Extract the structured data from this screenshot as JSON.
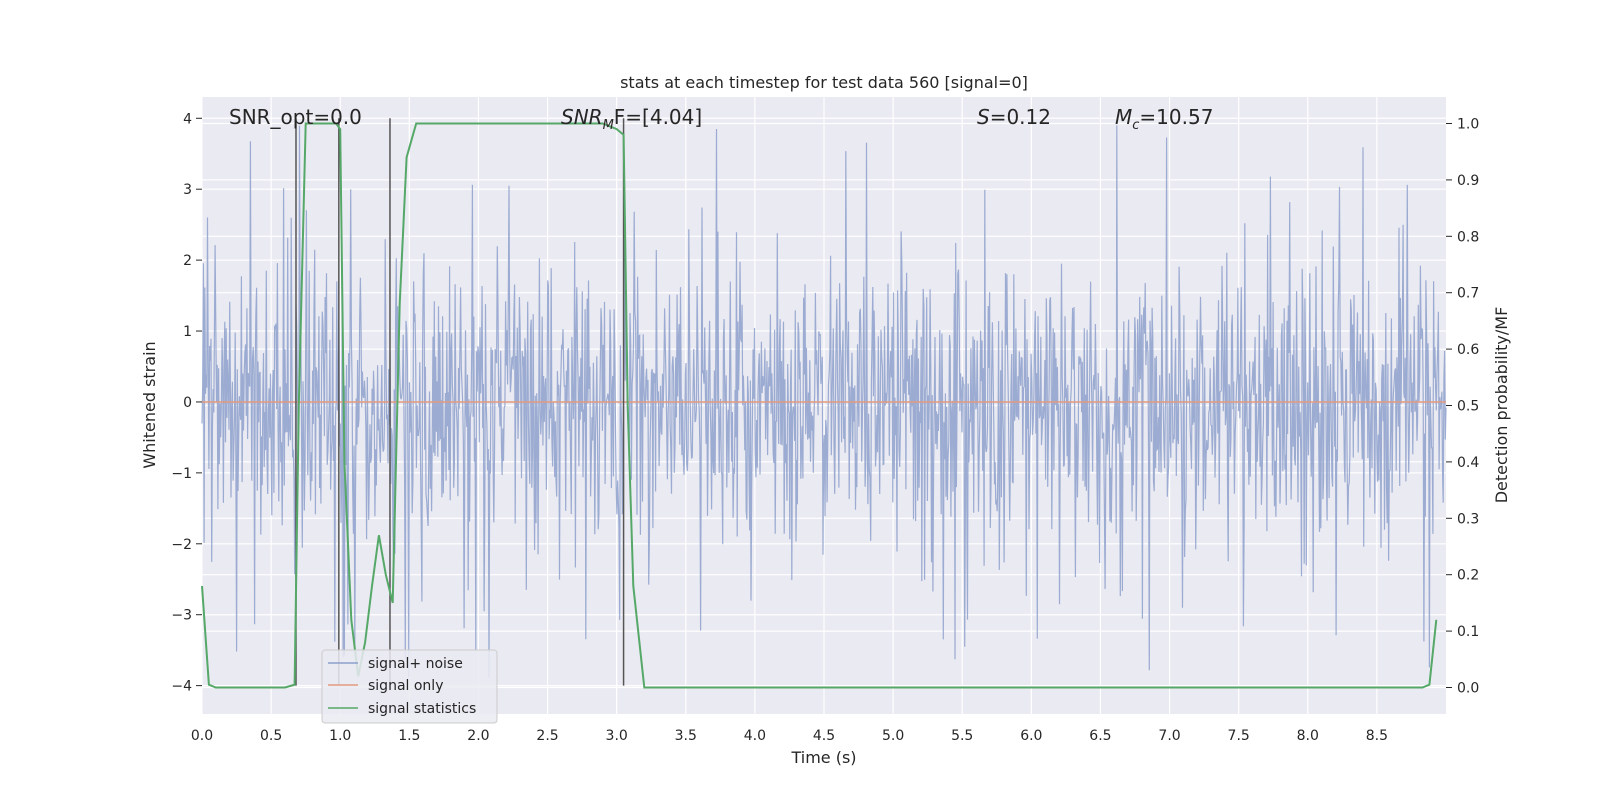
{
  "chart_data": {
    "type": "line",
    "title": "stats at each timestep for test data 560 [signal=0]",
    "xlabel": "Time (s)",
    "ylabel": "Whitened strain",
    "y2label": "Detection probability/MF",
    "xlim": [
      0.0,
      9.0
    ],
    "ylim": [
      -4.4,
      4.3
    ],
    "y2lim": [
      -0.047,
      1.047
    ],
    "xticks": [
      "0.0",
      "0.5",
      "1.0",
      "1.5",
      "2.0",
      "2.5",
      "3.0",
      "3.5",
      "4.0",
      "4.5",
      "5.0",
      "5.5",
      "6.0",
      "6.5",
      "7.0",
      "7.5",
      "8.0",
      "8.5"
    ],
    "yticks": [
      "4",
      "3",
      "2",
      "1",
      "0",
      "−1",
      "−2",
      "−3",
      "−4"
    ],
    "y2ticks": [
      "1.0",
      "0.9",
      "0.8",
      "0.7",
      "0.6",
      "0.5",
      "0.4",
      "0.3",
      "0.2",
      "0.1",
      "0.0"
    ],
    "grid": true,
    "legend_position": "lower-left",
    "annotations": {
      "snr_opt": "SNR_opt=0.0",
      "snr_mf_main": "SNR",
      "snr_mf_sub": "M",
      "snr_mf_rest": "F=[4.04]",
      "s_main": "S",
      "s_rest": "=0.12",
      "mc_main": "M",
      "mc_sub": "c",
      "mc_rest": "=10.57"
    },
    "series": [
      {
        "name": "signal+ noise",
        "color": "#8da0cb",
        "kind": "noise",
        "sample_count": 1800,
        "envelope": {
          "typical_abs": 1.6,
          "peak_abs": 3.9
        }
      },
      {
        "name": "signal only",
        "color": "#e39a7f",
        "x": [
          0.0,
          9.0
        ],
        "y": [
          0.0,
          0.0
        ]
      },
      {
        "name": "signal statistics",
        "color": "#55a868",
        "axis": "right",
        "x": [
          0.0,
          0.05,
          0.1,
          0.2,
          0.3,
          0.4,
          0.5,
          0.6,
          0.67,
          0.7,
          0.75,
          0.8,
          0.9,
          0.97,
          1.0,
          1.03,
          1.08,
          1.13,
          1.18,
          1.23,
          1.28,
          1.33,
          1.38,
          1.43,
          1.48,
          1.55,
          1.65,
          2.0,
          2.5,
          2.78,
          2.9,
          3.0,
          3.05,
          3.08,
          3.12,
          3.2,
          3.3,
          4.0,
          5.0,
          6.0,
          7.0,
          8.0,
          8.5,
          8.75,
          8.83,
          8.88,
          8.93
        ],
        "y": [
          0.18,
          0.005,
          0.0,
          0.0,
          0.0,
          0.0,
          0.0,
          0.0,
          0.005,
          0.5,
          1.0,
          1.0,
          1.0,
          1.0,
          0.99,
          0.4,
          0.12,
          0.02,
          0.08,
          0.18,
          0.27,
          0.2,
          0.15,
          0.68,
          0.94,
          1.0,
          1.0,
          1.0,
          1.0,
          1.0,
          1.0,
          0.99,
          0.98,
          0.5,
          0.18,
          0.0,
          0.0,
          0.0,
          0.0,
          0.0,
          0.0,
          0.0,
          0.0,
          0.0,
          0.0,
          0.005,
          0.12
        ]
      }
    ],
    "vlines": {
      "x": [
        0.68,
        0.99,
        1.36,
        3.05
      ],
      "ymin": -4.0,
      "ymax": 4.0,
      "color": "#555555"
    }
  }
}
